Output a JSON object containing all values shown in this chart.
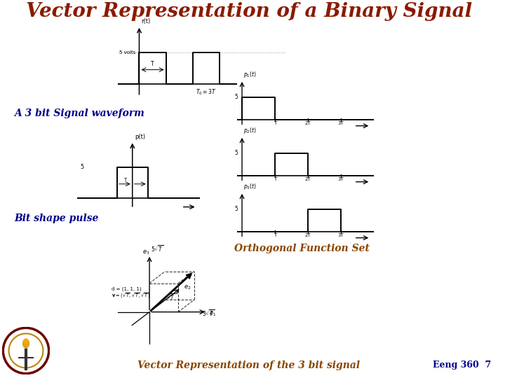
{
  "title": "Vector Representation of a Binary Signal",
  "title_color": "#8B1A00",
  "background_color": "#FFFFFF",
  "label_a3bit": "A 3 bit Signal waveform",
  "label_bit": "Bit shape pulse",
  "label_ortho": "Orthogonal Function Set",
  "label_vector": "Vector Representation of the 3 bit signal",
  "label_eeng": "Eeng 360  7"
}
